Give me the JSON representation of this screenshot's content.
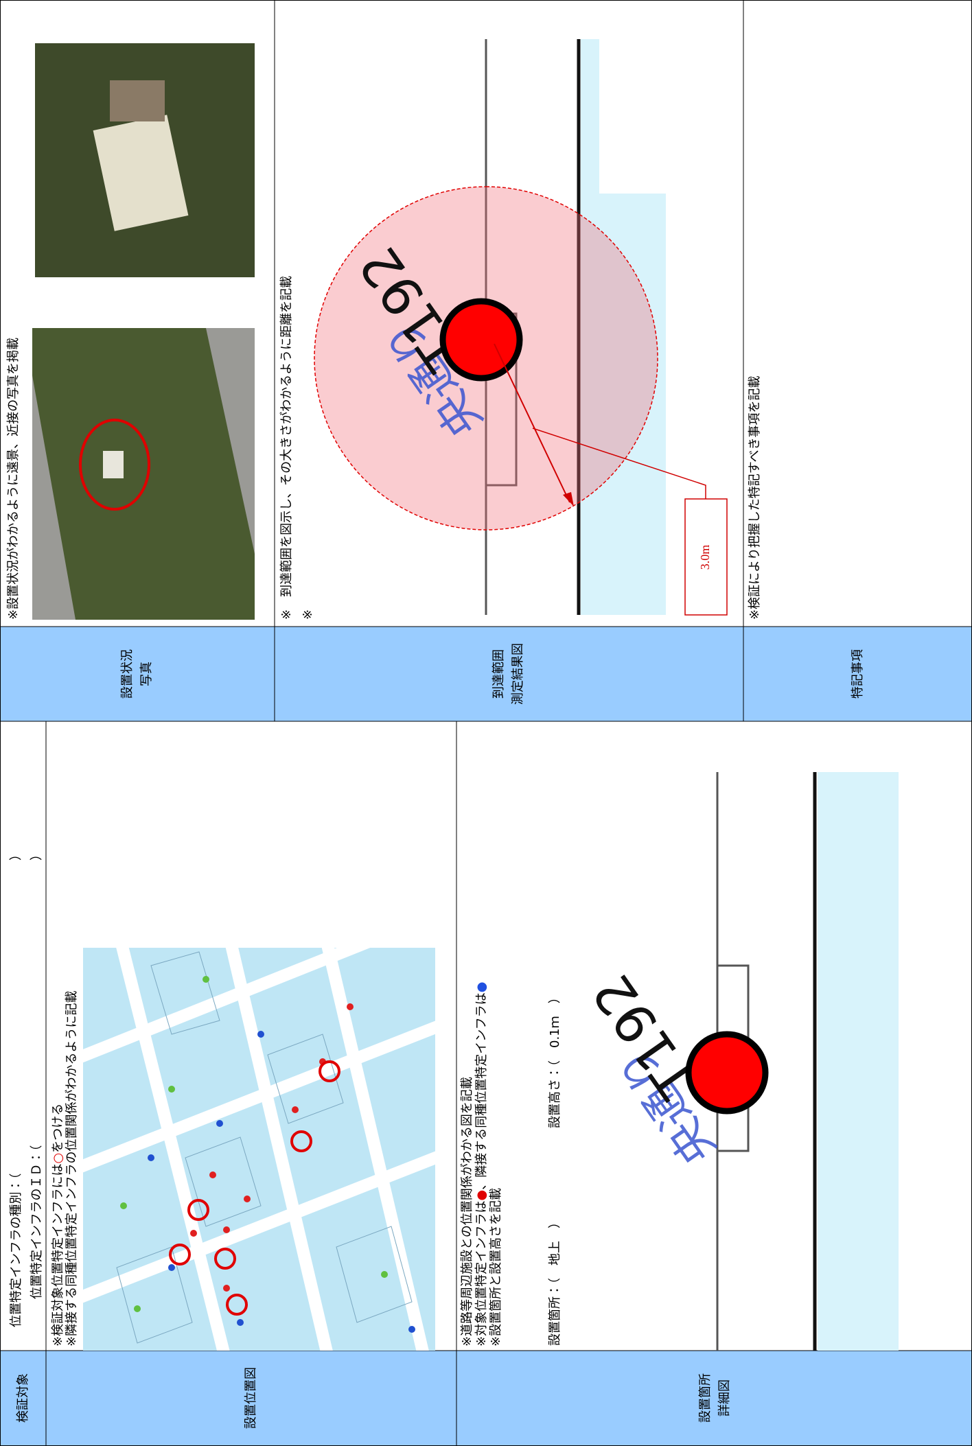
{
  "header": {
    "label": "検証対象",
    "type_field": "位置特定インフラの種別：（",
    "id_field": "位置特定インフラのＩＤ：（",
    "close": "）"
  },
  "location_map": {
    "label": "設置位置図",
    "notes": [
      [
        "※検証対象位置特定インフラには",
        "○",
        "をつける"
      ],
      [
        "※隣接する同種位置特定インフラの位置関係がわかるように記載"
      ]
    ]
  },
  "detail": {
    "label_lines": [
      "設置箇所",
      "詳細図"
    ],
    "notes": [
      [
        "※道路等周辺施設との位置関係がわかる図を記載"
      ],
      [
        "※対象位置特定インフラは",
        "●",
        "、隣接する同種位置特定インフラは",
        "●"
      ],
      [
        "※設置箇所と設置高さを記載"
      ]
    ],
    "location_field": "設置箇所：（　地上　）",
    "height_field": "設置高さ：（　0.1ｍ　）",
    "road_label": "央通り",
    "pole_id": "T192"
  },
  "photo": {
    "label_lines": [
      "設置状況",
      "写真"
    ],
    "note": "※設置状況がわかるように遠景、近接の写真を掲載"
  },
  "range": {
    "label_lines": [
      "到達範囲",
      "測定結果図"
    ],
    "notes": [
      "※　到達範囲を図示し、その大きさがわかるように距離を記載",
      "※"
    ],
    "distance": "3.0m",
    "road_label": "央通り",
    "pole_id": "T192"
  },
  "remarks": {
    "label": "特記事項",
    "note": "※検証により把握した特記すべき事項を記載"
  }
}
